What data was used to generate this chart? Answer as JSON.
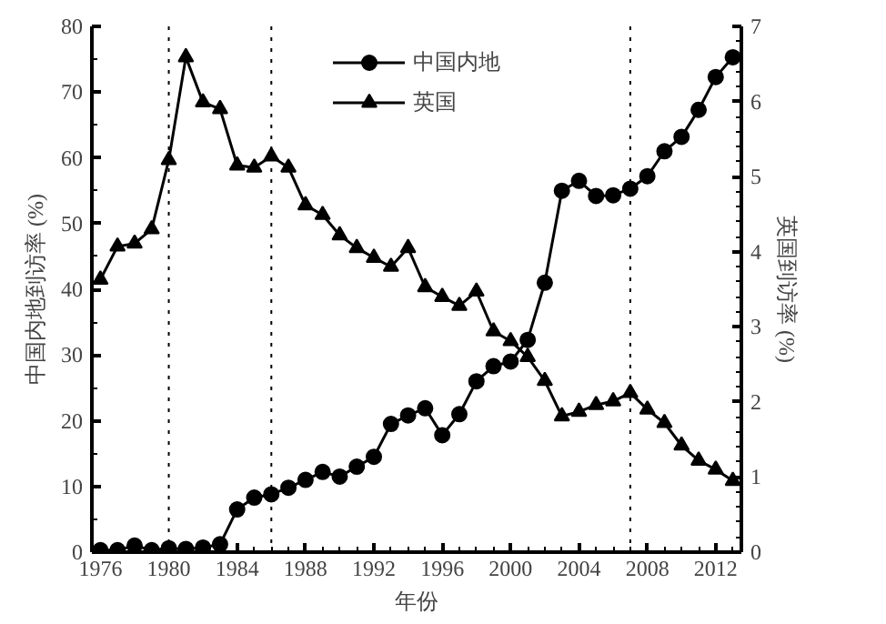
{
  "chart_data": {
    "type": "line",
    "xlabel": "年份",
    "ylabel": "中国内地到访率 (%)",
    "y2label": "英国到访率 (%)",
    "x": [
      1976,
      1977,
      1978,
      1979,
      1980,
      1981,
      1982,
      1983,
      1984,
      1985,
      1986,
      1987,
      1988,
      1989,
      1990,
      1991,
      1992,
      1993,
      1994,
      1995,
      1996,
      1997,
      1998,
      1999,
      2000,
      2001,
      2002,
      2003,
      2004,
      2005,
      2006,
      2007,
      2008,
      2009,
      2010,
      2011,
      2012,
      2013
    ],
    "series": [
      {
        "name": "中国内地",
        "color": "#000000",
        "marker": "circle",
        "values": [
          0.3,
          0.3,
          1,
          0.3,
          0.6,
          0.5,
          0.7,
          1.2,
          6.5,
          8.3,
          8.8,
          9.8,
          11,
          12.2,
          11.5,
          13,
          14.5,
          19.5,
          20.8,
          21.9,
          17.8,
          21,
          26,
          28.3,
          29,
          32.3,
          41,
          55,
          56.5,
          54.2,
          54.3,
          55.3,
          57.2,
          61,
          63.2,
          67.3,
          72.3,
          75.3
        ]
      },
      {
        "name": "英国",
        "color": "#000000",
        "marker": "triangle",
        "axis": "y2",
        "values": [
          3.63,
          4.07,
          4.11,
          4.3,
          5.22,
          6.59,
          5.99,
          5.9,
          5.15,
          5.12,
          5.27,
          5.12,
          4.62,
          4.49,
          4.22,
          4.05,
          3.92,
          3.8,
          4.05,
          3.53,
          3.4,
          3.28,
          3.47,
          2.94,
          2.81,
          2.6,
          2.28,
          1.81,
          1.87,
          1.96,
          2.01,
          2.12,
          1.9,
          1.72,
          1.42,
          1.22,
          1.1,
          0.95
        ]
      }
    ],
    "xlim": [
      1975.5,
      2013.5
    ],
    "xticks": [
      1976,
      1980,
      1984,
      1988,
      1992,
      1996,
      2000,
      2004,
      2008,
      2012
    ],
    "ylim": [
      0,
      80
    ],
    "yticks": [
      0,
      10,
      20,
      30,
      40,
      50,
      60,
      70,
      80
    ],
    "y2lim": [
      0,
      7
    ],
    "y2ticks": [
      0,
      1,
      2,
      3,
      4,
      5,
      6,
      7
    ],
    "ref_lines": [
      {
        "axis": "x",
        "value": 1980,
        "line_style": "dotted",
        "color": "#000000"
      },
      {
        "axis": "x",
        "value": 1986,
        "line_style": "dotted",
        "color": "#000000"
      },
      {
        "axis": "x",
        "value": 2007,
        "line_style": "dotted",
        "color": "#000000"
      }
    ],
    "grid": false,
    "legend": "top",
    "line_style": "solid"
  }
}
